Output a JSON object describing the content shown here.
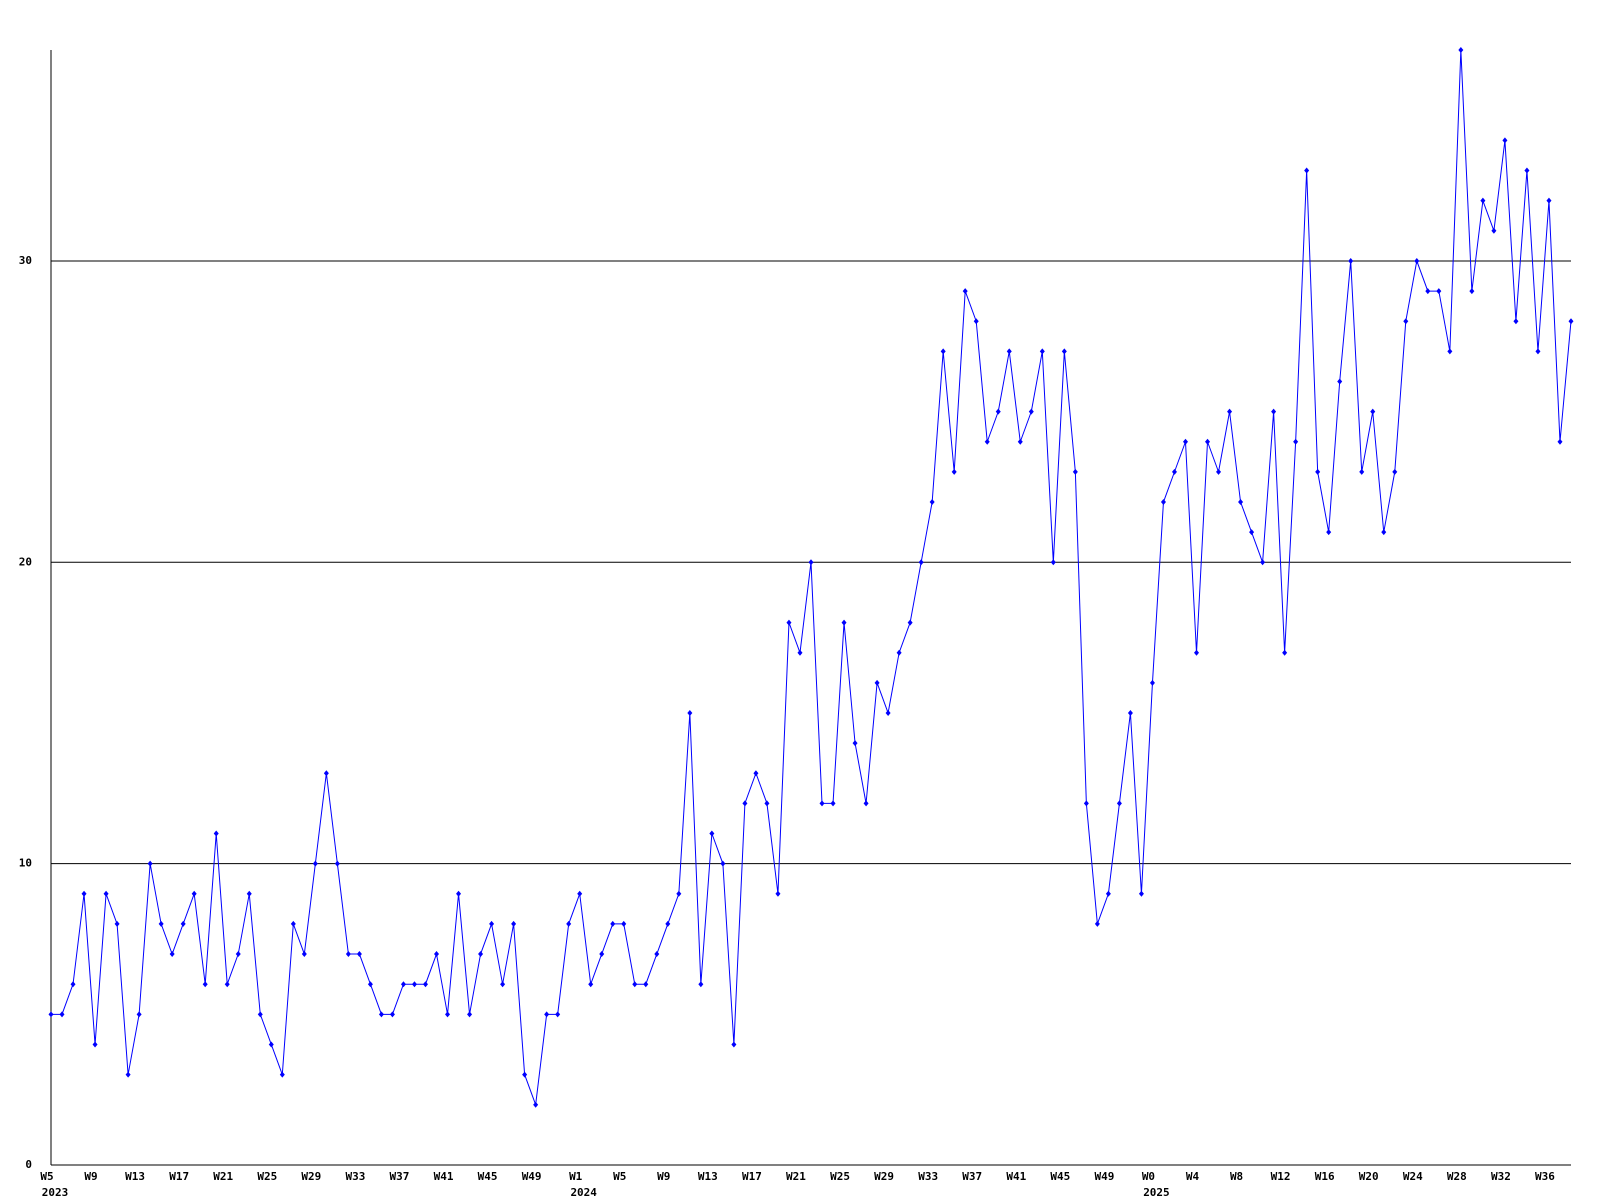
{
  "chart_data": {
    "type": "line",
    "color": "#0000ff",
    "ylim": [
      0,
      37
    ],
    "yticks": [
      0,
      10,
      20,
      30
    ],
    "grid": true,
    "categories": [
      "W5",
      null,
      null,
      null,
      "W9",
      null,
      null,
      null,
      "W13",
      null,
      null,
      null,
      "W17",
      null,
      null,
      null,
      "W21",
      null,
      null,
      null,
      "W25",
      null,
      null,
      null,
      "W29",
      null,
      null,
      null,
      "W33",
      null,
      null,
      null,
      "W37",
      null,
      null,
      null,
      "W41",
      null,
      null,
      null,
      "W45",
      null,
      null,
      null,
      "W49",
      null,
      null,
      null,
      "W1",
      null,
      null,
      null,
      "W5",
      null,
      null,
      null,
      "W9",
      null,
      null,
      null,
      "W13",
      null,
      null,
      null,
      "W17",
      null,
      null,
      null,
      "W21",
      null,
      null,
      null,
      "W25",
      null,
      null,
      null,
      "W29",
      null,
      null,
      null,
      "W33",
      null,
      null,
      null,
      "W37",
      null,
      null,
      null,
      "W41",
      null,
      null,
      null,
      "W45",
      null,
      null,
      null,
      "W49",
      null,
      null,
      null,
      "W0",
      null,
      null,
      null,
      "W4",
      null,
      null,
      null,
      "W8",
      null,
      null,
      null,
      "W12",
      null,
      null,
      null,
      "W16",
      null,
      null,
      null,
      "W20",
      null,
      null,
      null,
      "W24",
      null,
      null,
      null,
      "W28",
      null,
      null,
      null,
      "W32",
      null,
      null,
      null,
      "W36",
      null,
      null
    ],
    "year_labels": [
      {
        "label": "2023",
        "at": 0
      },
      {
        "label": "2024",
        "at": 48
      },
      {
        "label": "2025",
        "at": 100
      }
    ],
    "values": [
      5,
      5,
      6,
      9,
      4,
      9,
      8,
      3,
      5,
      10,
      8,
      7,
      8,
      9,
      6,
      11,
      6,
      7,
      9,
      5,
      4,
      3,
      8,
      7,
      10,
      13,
      10,
      7,
      7,
      6,
      5,
      5,
      6,
      6,
      6,
      7,
      5,
      9,
      5,
      7,
      8,
      6,
      8,
      3,
      2,
      5,
      5,
      8,
      9,
      6,
      7,
      8,
      8,
      6,
      6,
      7,
      8,
      9,
      15,
      6,
      11,
      10,
      4,
      12,
      13,
      12,
      9,
      18,
      17,
      20,
      12,
      12,
      18,
      14,
      12,
      16,
      15,
      17,
      18,
      20,
      22,
      27,
      23,
      29,
      28,
      24,
      25,
      27,
      24,
      25,
      27,
      20,
      27,
      23,
      12,
      8,
      9,
      12,
      15,
      9,
      16,
      22,
      23,
      24,
      17,
      24,
      23,
      25,
      22,
      21,
      20,
      25,
      17,
      24,
      33,
      23,
      21,
      26,
      30,
      23,
      25,
      21,
      23,
      28,
      30,
      29,
      29,
      27,
      37,
      29,
      32,
      31,
      34,
      28,
      33,
      27,
      32,
      24,
      28
    ]
  }
}
